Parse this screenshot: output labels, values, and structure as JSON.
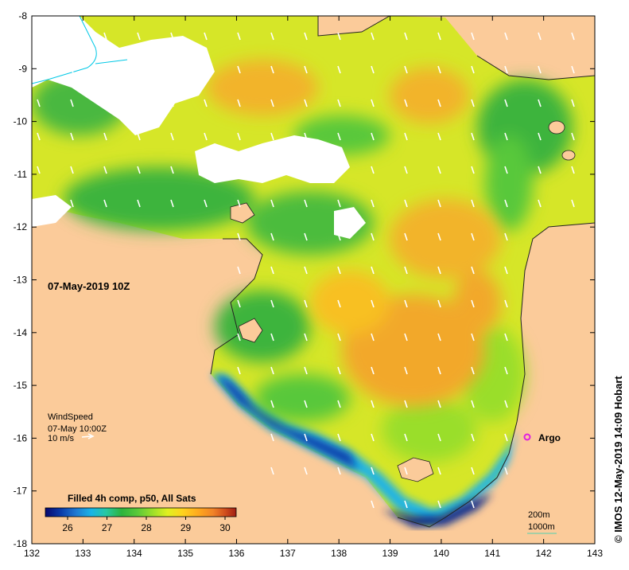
{
  "map": {
    "date_label": "07-May-2019 10Z",
    "copyright": "© IMOS 12-May-2019 14:09 Hobart",
    "wind": {
      "title": "WindSpeed",
      "time": "07-May 10:00Z",
      "scale": "10 m/s"
    },
    "colorbar": {
      "title": "Filled 4h comp, p50, All Sats",
      "ticks": [
        "26",
        "27",
        "28",
        "29",
        "30"
      ],
      "colors": [
        "#08086e",
        "#0a3aa8",
        "#1e78d2",
        "#1ab4e6",
        "#28c8a0",
        "#2eb33c",
        "#58c83a",
        "#9ade2a",
        "#e0f020",
        "#ffd21e",
        "#ffaa1e",
        "#f08228",
        "#d2501e",
        "#a01e14"
      ]
    },
    "argo_label": "Argo",
    "contours": {
      "depth": "200m",
      "deep": "1000m"
    },
    "x_ticks": [
      "132",
      "133",
      "134",
      "135",
      "136",
      "137",
      "138",
      "139",
      "140",
      "141",
      "142",
      "143"
    ],
    "y_ticks": [
      "-8",
      "-9",
      "-10",
      "-11",
      "-12",
      "-13",
      "-14",
      "-15",
      "-16",
      "-17",
      "-18"
    ],
    "colors": {
      "land": "#fbcb9a",
      "cloud": "#ffffff",
      "warm": "#f2a82a",
      "mid": "#e3e82a",
      "cool": "#2eb33c",
      "cold": "#0a3aa8",
      "argo": "#e020e0"
    }
  }
}
